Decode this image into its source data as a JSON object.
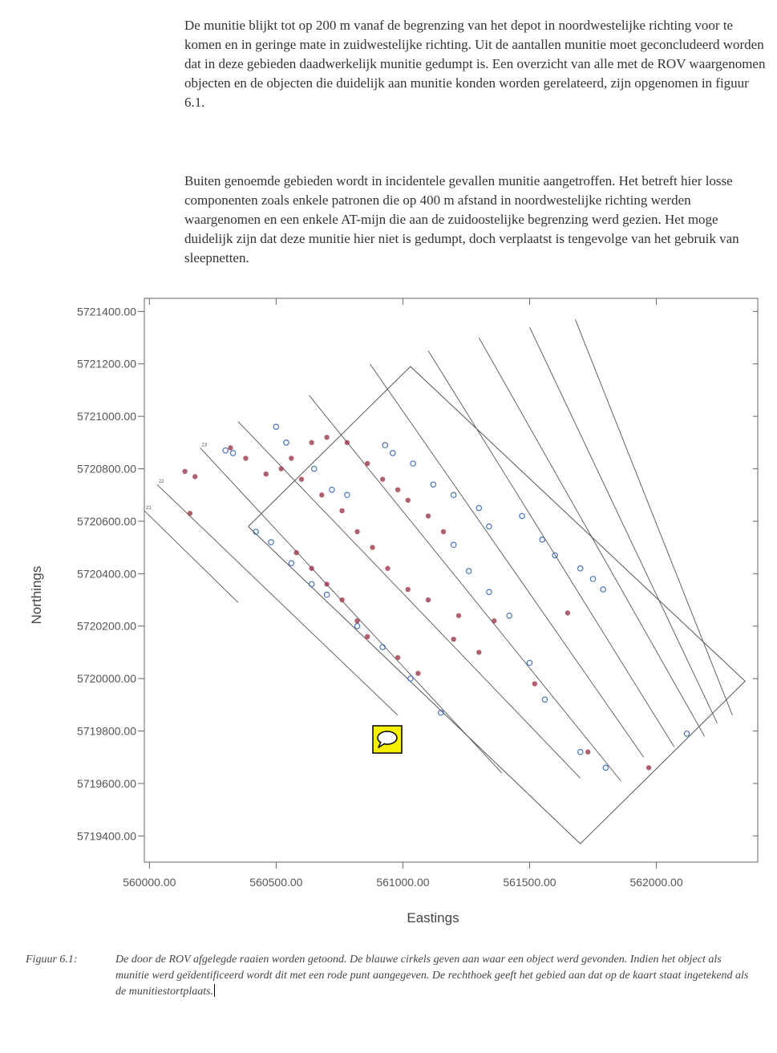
{
  "text": {
    "para1": "De munitie blijkt tot op 200 m vanaf de begrenzing van het depot in noordwestelijke richting voor te komen en in geringe mate in zuidwestelijke richting. Uit de aantallen munitie moet geconcludeerd worden dat in deze gebieden daadwerkelijk munitie gedumpt is. Een overzicht van alle met de ROV waargenomen objecten en de objecten die duidelijk aan munitie konden worden gerelateerd, zijn opgenomen in figuur 6.1.",
    "para2": "Buiten genoemde gebieden wordt in incidentele gevallen munitie aangetroffen. Het betreft hier losse componenten zoals enkele patronen die op 400 m afstand in noordwestelijke richting werden waargenomen en een enkele AT-mijn die aan de zuidoostelijke begrenzing werd gezien. Het moge duidelijk zijn dat deze munitie hier niet is gedumpt, doch verplaatst is tengevolge van het gebruik van sleepnetten."
  },
  "caption": {
    "label": "Figuur 6.1:",
    "text": "De door de ROV afgelegde raaien worden getoond. De blauwe cirkels geven aan waar een object werd gevonden. Indien het object als munitie werd geïdentificeerd wordt dit met een rode punt aangegeven. De rechthoek geeft het gebied aan dat op de kaart staat ingetekend als de munitiestortplaats."
  },
  "colors": {
    "object_circle": "#4a74b8",
    "munition_dot": "#9c3a4a",
    "line": "#555555",
    "comment_fill": "#f5f000"
  },
  "comment_icon": "speech-bubble-icon",
  "chart_data": {
    "type": "scatter",
    "xlabel": "Eastings",
    "ylabel": "Northings",
    "xlim": [
      559980,
      562400
    ],
    "ylim": [
      5719300,
      5721450
    ],
    "xticks": [
      560000,
      560500,
      561000,
      561500,
      562000
    ],
    "yticks": [
      5719400,
      5719600,
      5719800,
      5720000,
      5720200,
      5720400,
      5720600,
      5720800,
      5721000,
      5721200,
      5721400
    ],
    "xtick_labels": [
      "560000.00",
      "560500.00",
      "561000.00",
      "561500.00",
      "562000.00"
    ],
    "ytick_labels": [
      "5719400.00",
      "5719600.00",
      "5719800.00",
      "5720000.00",
      "5720200.00",
      "5720400.00",
      "5720600.00",
      "5720800.00",
      "5721000.00",
      "5721200.00",
      "5721400.00"
    ],
    "dump_area_polygon": [
      [
        560390,
        5720580
      ],
      [
        561030,
        5721190
      ],
      [
        562350,
        5719990
      ],
      [
        561700,
        5719370
      ],
      [
        560390,
        5720580
      ]
    ],
    "transects": [
      {
        "label": "21",
        "start": [
          559980,
          5720640
        ],
        "end": [
          560350,
          5720290
        ]
      },
      {
        "label": "22",
        "start": [
          560030,
          5720740
        ],
        "end": [
          560980,
          5719860
        ]
      },
      {
        "label": "23",
        "start": [
          560200,
          5720880
        ],
        "end": [
          561390,
          5719640
        ]
      },
      {
        "label": "",
        "start": [
          560350,
          5720980
        ],
        "end": [
          561700,
          5719620
        ]
      },
      {
        "label": "",
        "start": [
          560630,
          5721080
        ],
        "end": [
          561860,
          5719610
        ]
      },
      {
        "label": "",
        "start": [
          560870,
          5721200
        ],
        "end": [
          561950,
          5719700
        ]
      },
      {
        "label": "",
        "start": [
          561100,
          5721250
        ],
        "end": [
          562070,
          5719740
        ]
      },
      {
        "label": "",
        "start": [
          561300,
          5721300
        ],
        "end": [
          562190,
          5719780
        ]
      },
      {
        "label": "",
        "start": [
          561500,
          5721340
        ],
        "end": [
          562240,
          5719830
        ]
      },
      {
        "label": "",
        "start": [
          561680,
          5721370
        ],
        "end": [
          562300,
          5719860
        ]
      }
    ],
    "series": [
      {
        "name": "object",
        "points": [
          [
            560300,
            5720870
          ],
          [
            560330,
            5720860
          ],
          [
            560500,
            5720960
          ],
          [
            560540,
            5720900
          ],
          [
            560650,
            5720800
          ],
          [
            560720,
            5720720
          ],
          [
            560780,
            5720700
          ],
          [
            560930,
            5720890
          ],
          [
            560960,
            5720860
          ],
          [
            561040,
            5720820
          ],
          [
            561120,
            5720740
          ],
          [
            561200,
            5720700
          ],
          [
            561300,
            5720650
          ],
          [
            561340,
            5720580
          ],
          [
            561470,
            5720620
          ],
          [
            561550,
            5720530
          ],
          [
            561600,
            5720470
          ],
          [
            561700,
            5720420
          ],
          [
            561750,
            5720380
          ],
          [
            561790,
            5720340
          ],
          [
            560420,
            5720560
          ],
          [
            560480,
            5720520
          ],
          [
            560560,
            5720440
          ],
          [
            560640,
            5720360
          ],
          [
            560700,
            5720320
          ],
          [
            560820,
            5720200
          ],
          [
            560920,
            5720120
          ],
          [
            561030,
            5720000
          ],
          [
            561150,
            5719870
          ],
          [
            561200,
            5720510
          ],
          [
            561260,
            5720410
          ],
          [
            561340,
            5720330
          ],
          [
            561420,
            5720240
          ],
          [
            561500,
            5720060
          ],
          [
            561560,
            5719920
          ],
          [
            561700,
            5719720
          ],
          [
            561800,
            5719660
          ],
          [
            562120,
            5719790
          ]
        ]
      },
      {
        "name": "munition",
        "points": [
          [
            560320,
            5720880
          ],
          [
            560380,
            5720840
          ],
          [
            560460,
            5720780
          ],
          [
            560560,
            5720840
          ],
          [
            560640,
            5720900
          ],
          [
            560700,
            5720920
          ],
          [
            560780,
            5720900
          ],
          [
            560860,
            5720820
          ],
          [
            560920,
            5720760
          ],
          [
            560980,
            5720720
          ],
          [
            561020,
            5720680
          ],
          [
            561100,
            5720620
          ],
          [
            561160,
            5720560
          ],
          [
            560520,
            5720800
          ],
          [
            560600,
            5720760
          ],
          [
            560680,
            5720700
          ],
          [
            560760,
            5720640
          ],
          [
            560820,
            5720560
          ],
          [
            560880,
            5720500
          ],
          [
            560940,
            5720420
          ],
          [
            561020,
            5720340
          ],
          [
            561100,
            5720300
          ],
          [
            561220,
            5720240
          ],
          [
            561360,
            5720220
          ],
          [
            560580,
            5720480
          ],
          [
            560640,
            5720420
          ],
          [
            560700,
            5720360
          ],
          [
            560760,
            5720300
          ],
          [
            560820,
            5720220
          ],
          [
            560860,
            5720160
          ],
          [
            560980,
            5720080
          ],
          [
            561060,
            5720020
          ],
          [
            561200,
            5720150
          ],
          [
            561300,
            5720100
          ],
          [
            561520,
            5719980
          ],
          [
            561650,
            5720250
          ],
          [
            561730,
            5719720
          ],
          [
            561970,
            5719660
          ],
          [
            560140,
            5720790
          ],
          [
            560180,
            5720770
          ],
          [
            560160,
            5720630
          ]
        ]
      }
    ]
  }
}
